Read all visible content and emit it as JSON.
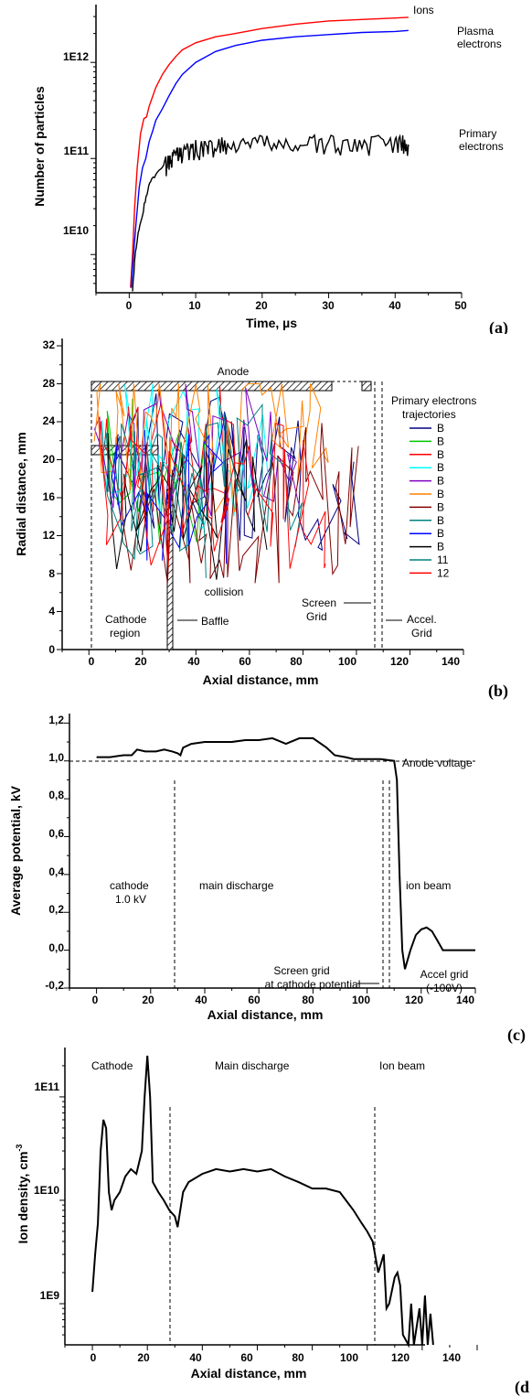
{
  "chart_data": [
    {
      "panel_label": "(a)",
      "type": "line",
      "xlabel": "Time, µs",
      "ylabel": "Number of particles",
      "xlim": [
        -5,
        50
      ],
      "ylim": [
        4000000000.0,
        4000000000000.0
      ],
      "yscale": "log",
      "x_ticks": [
        "0",
        "10",
        "20",
        "30",
        "40",
        "50"
      ],
      "y_ticks": [
        "1E10",
        "1E11",
        "1E12"
      ],
      "series": [
        {
          "name": "Ions",
          "color": "#ff0000",
          "legend": [
            "Ions"
          ],
          "points": [
            [
              0.2,
              4500000000.0
            ],
            [
              0.5,
              10000000000.0
            ],
            [
              0.8,
              30000000000.0
            ],
            [
              1.2,
              80000000000.0
            ],
            [
              1.7,
              180000000000.0
            ],
            [
              2.2,
              260000000000.0
            ],
            [
              2.6,
              270000000000.0
            ],
            [
              3,
              350000000000.0
            ],
            [
              4,
              550000000000.0
            ],
            [
              5,
              750000000000.0
            ],
            [
              6,
              950000000000.0
            ],
            [
              7,
              1150000000000.0
            ],
            [
              8,
              1350000000000.0
            ],
            [
              10,
              1600000000000.0
            ],
            [
              13,
              1850000000000.0
            ],
            [
              16,
              2000000000000.0
            ],
            [
              20,
              2250000000000.0
            ],
            [
              25,
              2500000000000.0
            ],
            [
              30,
              2700000000000.0
            ],
            [
              35,
              2800000000000.0
            ],
            [
              40,
              2900000000000.0
            ],
            [
              42,
              2950000000000.0
            ]
          ]
        },
        {
          "name": "Plasma electrons",
          "color": "#0000ff",
          "legend": [
            "Plasma",
            "electrons"
          ],
          "points": [
            [
              0.3,
              4500000000.0
            ],
            [
              0.6,
              9000000000.0
            ],
            [
              1,
              20000000000.0
            ],
            [
              1.5,
              50000000000.0
            ],
            [
              2,
              80000000000.0
            ],
            [
              2.5,
              100000000000.0
            ],
            [
              3,
              150000000000.0
            ],
            [
              3.5,
              190000000000.0
            ],
            [
              4,
              250000000000.0
            ],
            [
              5,
              330000000000.0
            ],
            [
              6,
              450000000000.0
            ],
            [
              7,
              600000000000.0
            ],
            [
              8,
              750000000000.0
            ],
            [
              10,
              1000000000000.0
            ],
            [
              13,
              1300000000000.0
            ],
            [
              16,
              1500000000000.0
            ],
            [
              20,
              1700000000000.0
            ],
            [
              25,
              1850000000000.0
            ],
            [
              30,
              1950000000000.0
            ],
            [
              35,
              2050000000000.0
            ],
            [
              40,
              2100000000000.0
            ],
            [
              42,
              2150000000000.0
            ]
          ]
        },
        {
          "name": "Primary electrons",
          "color": "#000000",
          "legend": [
            "Primary",
            "electrons"
          ],
          "points": [
            [
              0.5,
              4500000000.0
            ],
            [
              0.8,
              8000000000.0
            ],
            [
              1.2,
              15000000000.0
            ],
            [
              1.6,
              20000000000.0
            ],
            [
              2,
              26000000000.0
            ],
            [
              2.4,
              35000000000.0
            ],
            [
              2.8,
              45000000000.0
            ],
            [
              3.2,
              60000000000.0
            ],
            [
              3.8,
              65000000000.0
            ],
            [
              4.5,
              75000000000.0
            ],
            [
              5.5,
              85000000000.0
            ],
            [
              6.5,
              100000000000.0
            ],
            [
              8,
              115000000000.0
            ],
            [
              10,
              125000000000.0
            ],
            [
              12,
              130000000000.0
            ],
            [
              15,
              135000000000.0
            ],
            [
              20,
              140000000000.0
            ],
            [
              25,
              140000000000.0
            ],
            [
              30,
              140000000000.0
            ],
            [
              35,
              140000000000.0
            ],
            [
              40,
              140000000000.0
            ],
            [
              42,
              140000000000.0
            ]
          ]
        }
      ]
    },
    {
      "panel_label": "(b)",
      "type": "line",
      "xlabel": "Axial distance, mm",
      "ylabel": "Radial distance, mm",
      "xlim": [
        -10,
        140
      ],
      "ylim": [
        0,
        32
      ],
      "x_ticks": [
        "0",
        "20",
        "40",
        "60",
        "80",
        "100",
        "120",
        "140"
      ],
      "y_ticks": [
        "0",
        "4",
        "8",
        "12",
        "16",
        "20",
        "24",
        "28",
        "32"
      ],
      "annotations": {
        "anode": "Anode",
        "collision": "collision",
        "cathode_region": [
          "Cathode",
          "region"
        ],
        "baffle": "Baffle",
        "screen_grid": [
          "Screen",
          "Grid"
        ],
        "accel_grid": [
          "Accel.",
          "Grid"
        ]
      },
      "legend_title": [
        "Primary electrons",
        "trajectories"
      ],
      "series": [
        {
          "name": "B",
          "color": "#000080"
        },
        {
          "name": "B",
          "color": "#00c800"
        },
        {
          "name": "B",
          "color": "#ff0000"
        },
        {
          "name": "B",
          "color": "#00ffff"
        },
        {
          "name": "B",
          "color": "#8000c0"
        },
        {
          "name": "B",
          "color": "#ff8000"
        },
        {
          "name": "B",
          "color": "#800000"
        },
        {
          "name": "B",
          "color": "#008080"
        },
        {
          "name": "B",
          "color": "#0000ff"
        },
        {
          "name": "B",
          "color": "#000000"
        },
        {
          "name": "11",
          "color": "#008080"
        },
        {
          "name": "12",
          "color": "#ff0000"
        }
      ]
    },
    {
      "panel_label": "(c)",
      "type": "line",
      "xlabel": "Axial distance, mm",
      "ylabel": "Average potential, kV",
      "xlim": [
        -10,
        140
      ],
      "ylim": [
        -0.2,
        1.25
      ],
      "x_ticks": [
        "0",
        "20",
        "40",
        "60",
        "80",
        "100",
        "120",
        "140"
      ],
      "y_ticks": [
        "-0,2",
        "0,0",
        "0,2",
        "0,4",
        "0,6",
        "0,8",
        "1,0",
        "1,2"
      ],
      "annotations": {
        "anode_voltage": "Anode voltage",
        "cathode": [
          "cathode",
          "1.0 kV"
        ],
        "main_discharge": "main discharge",
        "ion_beam": "ion beam",
        "screen_grid": [
          "Screen grid",
          "at cathode potential"
        ],
        "accel_grid": [
          "Accel grid",
          "(-100V)"
        ]
      },
      "series": [
        {
          "name": "",
          "color": "#000000",
          "points": [
            [
              0,
              1.02
            ],
            [
              5,
              1.02
            ],
            [
              10,
              1.03
            ],
            [
              13,
              1.03
            ],
            [
              15,
              1.06
            ],
            [
              18,
              1.05
            ],
            [
              22,
              1.05
            ],
            [
              25,
              1.06
            ],
            [
              28,
              1.05
            ],
            [
              30,
              1.04
            ],
            [
              31,
              1.03
            ],
            [
              32,
              1.07
            ],
            [
              35,
              1.09
            ],
            [
              40,
              1.1
            ],
            [
              45,
              1.1
            ],
            [
              50,
              1.1
            ],
            [
              55,
              1.11
            ],
            [
              60,
              1.11
            ],
            [
              65,
              1.12
            ],
            [
              70,
              1.09
            ],
            [
              75,
              1.12
            ],
            [
              80,
              1.12
            ],
            [
              85,
              1.07
            ],
            [
              88,
              1.03
            ],
            [
              92,
              1.02
            ],
            [
              95,
              1.01
            ],
            [
              100,
              1.01
            ],
            [
              105,
              1.01
            ],
            [
              110,
              1.0
            ],
            [
              111,
              0.9
            ],
            [
              112,
              0.4
            ],
            [
              113,
              0.0
            ],
            [
              114,
              -0.1
            ],
            [
              116,
              0.0
            ],
            [
              118,
              0.08
            ],
            [
              120,
              0.11
            ],
            [
              122,
              0.12
            ],
            [
              124,
              0.1
            ],
            [
              126,
              0.05
            ],
            [
              128,
              0.0
            ],
            [
              140,
              0.0
            ]
          ]
        }
      ]
    },
    {
      "panel_label": "(d",
      "type": "line",
      "xlabel": "Axial distance, mm",
      "ylabel": "Ion density, cm",
      "ylabel_sup": "-3",
      "xlim": [
        -10,
        140
      ],
      "ylim": [
        400000000.0,
        300000000000.0
      ],
      "yscale": "log",
      "x_ticks": [
        "0",
        "20",
        "40",
        "60",
        "80",
        "100",
        "120",
        "140"
      ],
      "y_ticks": [
        "1E9",
        "1E10",
        "1E11"
      ],
      "annotations": {
        "cathode": "Cathode",
        "main_discharge": "Main discharge",
        "ion_beam": "Ion beam"
      },
      "series": [
        {
          "name": "",
          "color": "#000000",
          "points": [
            [
              0,
              1300000000.0
            ],
            [
              1,
              3000000000.0
            ],
            [
              2,
              6000000000.0
            ],
            [
              3,
              30000000000.0
            ],
            [
              4,
              60000000000.0
            ],
            [
              5,
              50000000000.0
            ],
            [
              6,
              12000000000.0
            ],
            [
              7,
              8000000000.0
            ],
            [
              8,
              10000000000.0
            ],
            [
              10,
              12000000000.0
            ],
            [
              12,
              17000000000.0
            ],
            [
              14,
              20000000000.0
            ],
            [
              16,
              18000000000.0
            ],
            [
              18,
              30000000000.0
            ],
            [
              19,
              100000000000.0
            ],
            [
              20,
              250000000000.0
            ],
            [
              21,
              100000000000.0
            ],
            [
              22,
              15000000000.0
            ],
            [
              24,
              12000000000.0
            ],
            [
              26,
              10000000000.0
            ],
            [
              28,
              8000000000.0
            ],
            [
              30,
              7000000000.0
            ],
            [
              31,
              5500000000.0
            ],
            [
              33,
              12000000000.0
            ],
            [
              35,
              15000000000.0
            ],
            [
              40,
              18000000000.0
            ],
            [
              45,
              20000000000.0
            ],
            [
              50,
              19000000000.0
            ],
            [
              55,
              20000000000.0
            ],
            [
              60,
              19000000000.0
            ],
            [
              65,
              20000000000.0
            ],
            [
              70,
              17000000000.0
            ],
            [
              75,
              15000000000.0
            ],
            [
              80,
              13000000000.0
            ],
            [
              85,
              13000000000.0
            ],
            [
              90,
              12000000000.0
            ],
            [
              95,
              8000000000.0
            ],
            [
              98,
              6000000000.0
            ],
            [
              100,
              5000000000.0
            ],
            [
              102,
              4000000000.0
            ],
            [
              104,
              2000000000.0
            ],
            [
              106,
              3000000000.0
            ],
            [
              107,
              900000000.0
            ],
            [
              108,
              1000000000.0
            ],
            [
              110,
              1800000000.0
            ],
            [
              111,
              2000000000.0
            ],
            [
              112,
              1500000000.0
            ],
            [
              113,
              500000000.0
            ],
            [
              115,
              400000000.0
            ],
            [
              116,
              1000000000.0
            ],
            [
              117,
              400000000.0
            ],
            [
              119,
              900000000.0
            ],
            [
              120,
              400000000.0
            ],
            [
              121,
              1200000000.0
            ],
            [
              122,
              400000000.0
            ],
            [
              123,
              800000000.0
            ],
            [
              124,
              400000000.0
            ]
          ]
        }
      ]
    }
  ]
}
